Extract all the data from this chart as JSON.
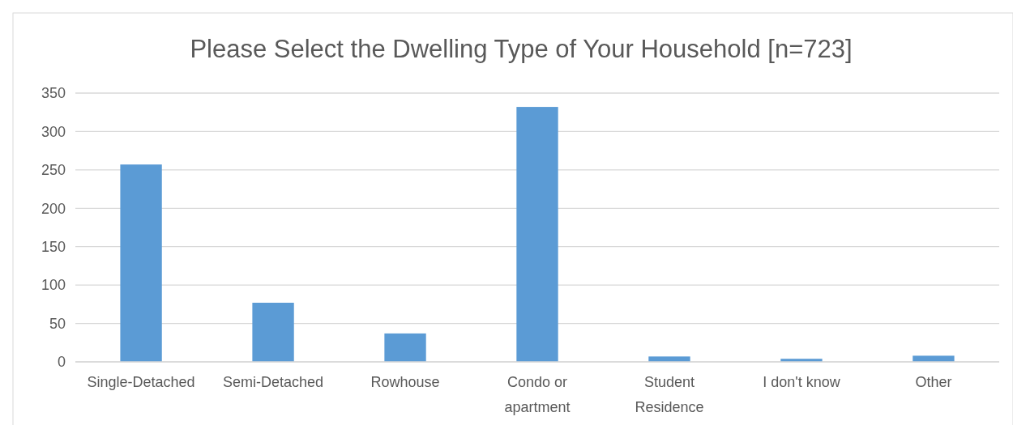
{
  "chart_data": {
    "type": "bar",
    "title": "Please Select the Dwelling Type of Your Household [n=723]",
    "categories": [
      "Single-Detached",
      "Semi-Detached",
      "Rowhouse",
      "Condo or apartment",
      "Student Residence",
      "I don't know",
      "Other"
    ],
    "values": [
      257,
      77,
      37,
      332,
      7,
      4,
      8
    ],
    "color": "#5b9bd5",
    "ylim": [
      0,
      350
    ],
    "yticks": [
      0,
      50,
      100,
      150,
      200,
      250,
      300,
      350
    ],
    "grid": "y"
  }
}
